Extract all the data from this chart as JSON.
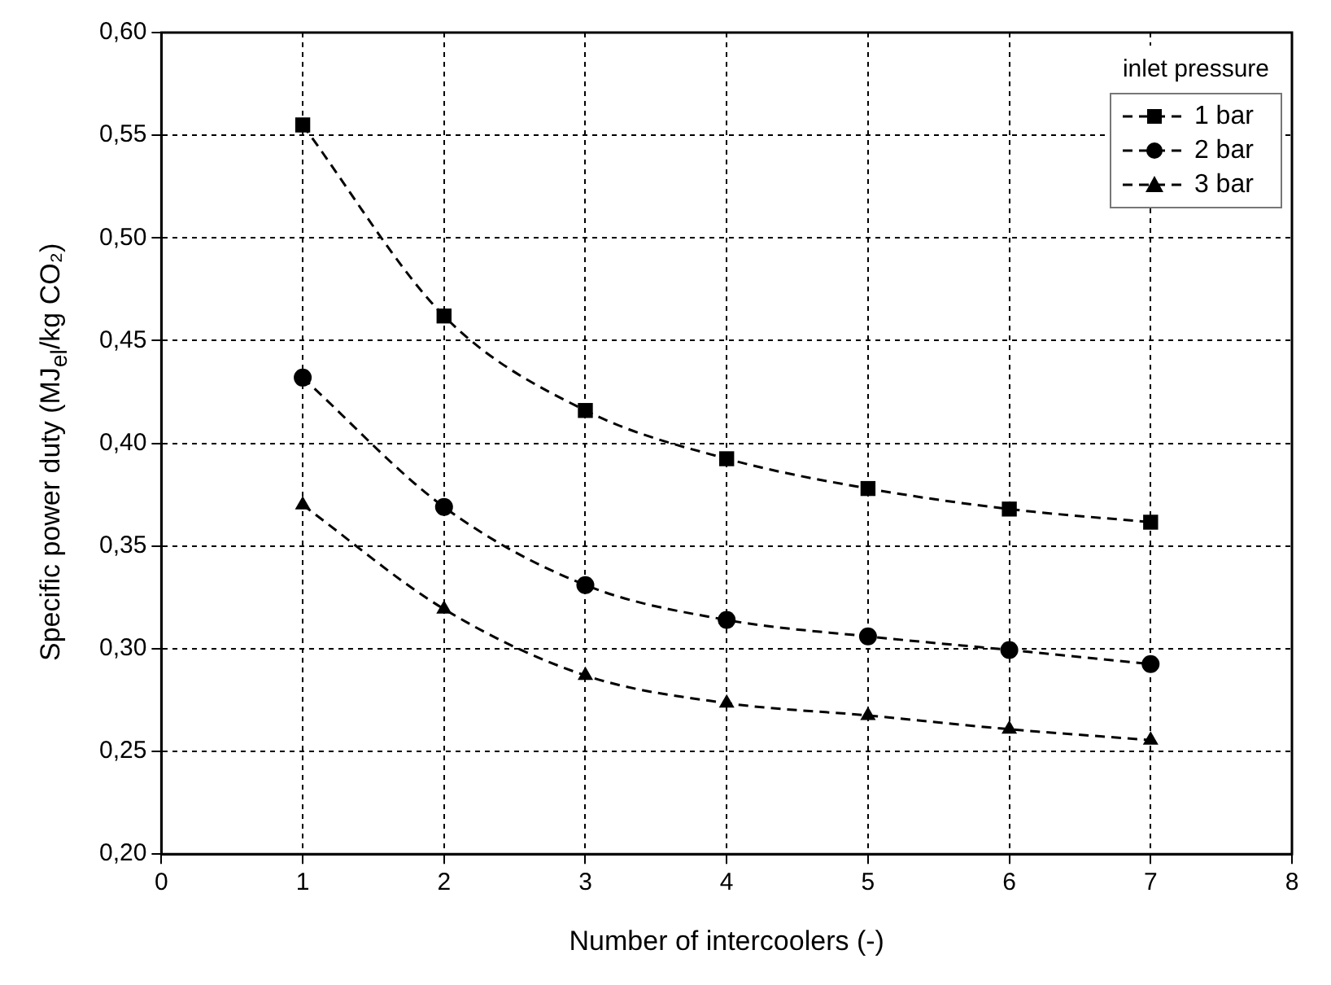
{
  "chart_data": {
    "type": "line",
    "xlabel": "Number of intercoolers (-)",
    "ylabel": "Specific power duty (MJ$_{el}$/kg CO₂)",
    "legend_title": "inlet pressure",
    "x": [
      1,
      2,
      3,
      4,
      5,
      6,
      7
    ],
    "series": [
      {
        "name": "1 bar",
        "color": "#000000",
        "marker": "square",
        "values": [
          0.555,
          0.462,
          0.416,
          0.3925,
          0.378,
          0.368,
          0.3616
        ]
      },
      {
        "name": "2 bar",
        "color": "#000000",
        "marker": "circle",
        "values": [
          0.432,
          0.369,
          0.331,
          0.314,
          0.306,
          0.2994,
          0.2925
        ]
      },
      {
        "name": "3 bar",
        "color": "#000000",
        "marker": "triangle",
        "values": [
          0.37,
          0.3193,
          0.287,
          0.2735,
          0.2675,
          0.2608,
          0.2555
        ]
      }
    ],
    "xlim": [
      0,
      8
    ],
    "xticks": [
      0,
      1,
      2,
      3,
      4,
      5,
      6,
      7,
      8
    ],
    "ylim": [
      0.2,
      0.6
    ],
    "yticks": [
      {
        "value": 0.2,
        "label": "0,20"
      },
      {
        "value": 0.25,
        "label": "0,25"
      },
      {
        "value": 0.3,
        "label": "0,30"
      },
      {
        "value": 0.35,
        "label": "0,35"
      },
      {
        "value": 0.4,
        "label": "0,40"
      },
      {
        "value": 0.45,
        "label": "0,45"
      },
      {
        "value": 0.5,
        "label": "0,50"
      },
      {
        "value": 0.55,
        "label": "0,55"
      },
      {
        "value": 0.6,
        "label": "0,60"
      }
    ],
    "grid": true,
    "legend": "top right",
    "line_style": "dashed"
  }
}
